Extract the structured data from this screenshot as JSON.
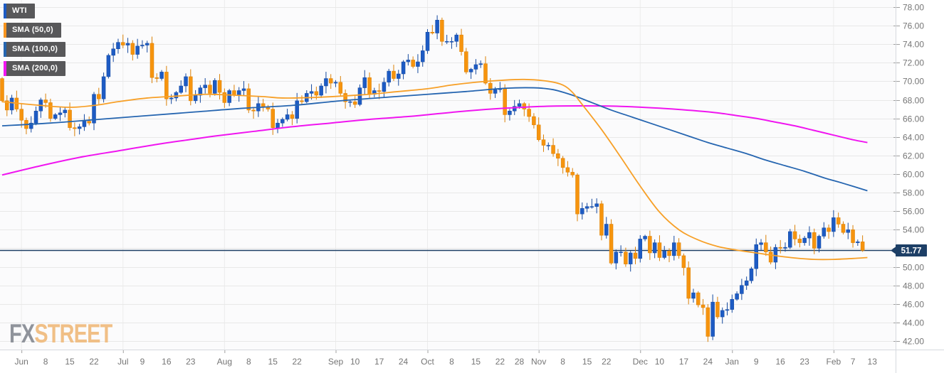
{
  "legend": {
    "items": [
      {
        "label": "WTI",
        "color": "#1d5bc4"
      },
      {
        "label": "SMA (50,0)",
        "color": "#f7941e"
      },
      {
        "label": "SMA (100,0)",
        "color": "#2565b0"
      },
      {
        "label": "SMA (200,0)",
        "color": "#f015f0"
      }
    ]
  },
  "watermark": {
    "fx": "FX",
    "street": "STREET"
  },
  "chart_data": {
    "type": "candlestick",
    "symbol": "WTI",
    "last_price": 51.77,
    "price_label": "51.77",
    "y_axis": {
      "min": 42,
      "max": 78,
      "step": 2,
      "tick_values": [
        78,
        76,
        74,
        72,
        70,
        68,
        66,
        64,
        62,
        60,
        58,
        56,
        54,
        52,
        50,
        48,
        46,
        44,
        42
      ]
    },
    "x_axis": {
      "labels": [
        {
          "t": "Jun",
          "i": 4,
          "m": true
        },
        {
          "t": "8",
          "i": 9
        },
        {
          "t": "15",
          "i": 14
        },
        {
          "t": "22",
          "i": 19
        },
        {
          "t": "Jul",
          "i": 25,
          "m": true
        },
        {
          "t": "9",
          "i": 29
        },
        {
          "t": "16",
          "i": 34
        },
        {
          "t": "23",
          "i": 39
        },
        {
          "t": "Aug",
          "i": 46,
          "m": true
        },
        {
          "t": "8",
          "i": 51
        },
        {
          "t": "15",
          "i": 56
        },
        {
          "t": "22",
          "i": 61
        },
        {
          "t": "Sep",
          "i": 69,
          "m": true
        },
        {
          "t": "10",
          "i": 73
        },
        {
          "t": "17",
          "i": 78
        },
        {
          "t": "24",
          "i": 83
        },
        {
          "t": "Oct",
          "i": 88,
          "m": true
        },
        {
          "t": "8",
          "i": 93
        },
        {
          "t": "15",
          "i": 98
        },
        {
          "t": "22",
          "i": 103
        },
        {
          "t": "28",
          "i": 107
        },
        {
          "t": "Nov",
          "i": 111,
          "m": true
        },
        {
          "t": "8",
          "i": 116
        },
        {
          "t": "15",
          "i": 121
        },
        {
          "t": "22",
          "i": 125
        },
        {
          "t": "Dec",
          "i": 132,
          "m": true
        },
        {
          "t": "10",
          "i": 136
        },
        {
          "t": "17",
          "i": 141
        },
        {
          "t": "24",
          "i": 146
        },
        {
          "t": "Jan",
          "i": 151,
          "m": true
        },
        {
          "t": "9",
          "i": 156
        },
        {
          "t": "16",
          "i": 161
        },
        {
          "t": "23",
          "i": 166
        },
        {
          "t": "Feb",
          "i": 172,
          "m": true
        },
        {
          "t": "7",
          "i": 176
        },
        {
          "t": "13",
          "i": 180
        }
      ]
    },
    "candles": {
      "first_open": 70.3,
      "closes": [
        67.9,
        66.9,
        68.2,
        67.0,
        65.8,
        64.9,
        65.5,
        66.8,
        68.0,
        67.7,
        66.0,
        66.4,
        66.6,
        66.9,
        65.0,
        64.9,
        65.1,
        65.7,
        65.5,
        68.6,
        68.1,
        70.5,
        72.8,
        73.5,
        74.2,
        73.9,
        74.1,
        72.9,
        73.8,
        73.9,
        74.1,
        70.4,
        70.3,
        71.0,
        68.1,
        68.2,
        68.8,
        69.5,
        70.5,
        67.9,
        68.5,
        69.3,
        69.6,
        68.7,
        70.1,
        68.8,
        67.7,
        69.0,
        68.5,
        69.0,
        69.2,
        66.9,
        66.8,
        67.6,
        67.2,
        67.0,
        65.0,
        65.5,
        65.9,
        66.4,
        66.0,
        67.9,
        67.8,
        68.7,
        68.9,
        68.5,
        69.5,
        70.3,
        69.8,
        69.9,
        68.7,
        67.8,
        67.8,
        67.5,
        69.3,
        70.4,
        68.6,
        69.0,
        68.9,
        69.9,
        71.1,
        70.3,
        70.8,
        72.1,
        72.3,
        71.6,
        72.1,
        73.3,
        75.3,
        75.2,
        76.6,
        74.3,
        74.3,
        74.3,
        75.0,
        73.2,
        71.0,
        71.3,
        71.8,
        71.9,
        69.8,
        68.7,
        69.1,
        69.2,
        66.4,
        66.8,
        67.3,
        67.6,
        67.0,
        66.2,
        65.3,
        63.7,
        63.1,
        63.1,
        62.2,
        61.7,
        60.7,
        60.2,
        59.9,
        55.7,
        56.3,
        56.5,
        56.5,
        56.8,
        53.4,
        54.6,
        50.4,
        51.6,
        51.6,
        50.3,
        51.5,
        50.9,
        53.0,
        53.3,
        51.5,
        52.6,
        51.0,
        51.7,
        51.2,
        52.6,
        51.2,
        49.9,
        46.6,
        47.2,
        45.9,
        45.6,
        42.5,
        46.2,
        44.6,
        45.3,
        45.4,
        46.5,
        47.1,
        48.0,
        48.5,
        49.8,
        52.4,
        52.6,
        51.6,
        50.5,
        52.1,
        52.0,
        52.1,
        53.8,
        53.0,
        52.6,
        53.1,
        53.7,
        52.0,
        53.3,
        54.2,
        53.8,
        55.3,
        54.6,
        53.7,
        54.0,
        52.6,
        52.7,
        51.77
      ]
    },
    "sma50": [
      [
        0,
        67.8
      ],
      [
        8,
        67.4
      ],
      [
        14,
        67.2
      ],
      [
        19,
        67.4
      ],
      [
        24,
        67.8
      ],
      [
        30,
        68.2
      ],
      [
        36,
        68.4
      ],
      [
        42,
        68.6
      ],
      [
        48,
        68.5
      ],
      [
        54,
        68.35
      ],
      [
        58,
        68.2
      ],
      [
        64,
        68.25
      ],
      [
        70,
        68.4
      ],
      [
        76,
        68.6
      ],
      [
        82,
        68.9
      ],
      [
        88,
        69.2
      ],
      [
        93,
        69.6
      ],
      [
        98,
        69.9
      ],
      [
        103,
        70.1
      ],
      [
        108,
        70.2
      ],
      [
        113,
        70.0
      ],
      [
        116,
        69.6
      ],
      [
        118,
        68.8
      ],
      [
        120,
        67.5
      ],
      [
        124,
        64.8
      ],
      [
        128,
        61.8
      ],
      [
        132,
        58.7
      ],
      [
        136,
        55.9
      ],
      [
        140,
        54.0
      ],
      [
        144,
        52.9
      ],
      [
        148,
        52.2
      ],
      [
        152,
        51.8
      ],
      [
        156,
        51.5
      ],
      [
        160,
        51.2
      ],
      [
        164,
        50.95
      ],
      [
        168,
        50.8
      ],
      [
        172,
        50.8
      ],
      [
        176,
        50.9
      ],
      [
        179,
        51.0
      ]
    ],
    "sma100": [
      [
        0,
        65.2
      ],
      [
        10,
        65.5
      ],
      [
        20,
        65.9
      ],
      [
        30,
        66.3
      ],
      [
        40,
        66.7
      ],
      [
        50,
        67.1
      ],
      [
        60,
        67.4
      ],
      [
        70,
        67.9
      ],
      [
        80,
        68.3
      ],
      [
        88,
        68.6
      ],
      [
        96,
        68.9
      ],
      [
        104,
        69.25
      ],
      [
        110,
        69.3
      ],
      [
        114,
        69.1
      ],
      [
        118,
        68.5
      ],
      [
        122,
        67.7
      ],
      [
        126,
        66.9
      ],
      [
        130,
        66.2
      ],
      [
        134,
        65.5
      ],
      [
        138,
        64.8
      ],
      [
        142,
        64.1
      ],
      [
        146,
        63.4
      ],
      [
        150,
        62.8
      ],
      [
        154,
        62.2
      ],
      [
        158,
        61.5
      ],
      [
        162,
        60.9
      ],
      [
        166,
        60.3
      ],
      [
        170,
        59.6
      ],
      [
        174,
        59.0
      ],
      [
        179,
        58.2
      ]
    ],
    "sma200": [
      [
        0,
        59.9
      ],
      [
        8,
        60.9
      ],
      [
        16,
        61.8
      ],
      [
        24,
        62.5
      ],
      [
        32,
        63.2
      ],
      [
        40,
        63.8
      ],
      [
        44,
        64.1
      ],
      [
        52,
        64.6
      ],
      [
        60,
        65.1
      ],
      [
        68,
        65.5
      ],
      [
        76,
        65.9
      ],
      [
        84,
        66.2
      ],
      [
        88,
        66.4
      ],
      [
        96,
        66.8
      ],
      [
        104,
        67.1
      ],
      [
        112,
        67.3
      ],
      [
        120,
        67.35
      ],
      [
        128,
        67.3
      ],
      [
        136,
        67.1
      ],
      [
        144,
        66.8
      ],
      [
        148,
        66.6
      ],
      [
        152,
        66.3
      ],
      [
        156,
        66.0
      ],
      [
        160,
        65.6
      ],
      [
        164,
        65.2
      ],
      [
        168,
        64.7
      ],
      [
        172,
        64.2
      ],
      [
        176,
        63.7
      ],
      [
        179,
        63.4
      ]
    ],
    "colors": {
      "candle_up": "#1d5bc4",
      "candle_up_border": "#164a9f",
      "candle_down": "#f6940e",
      "candle_down_border": "#db8108",
      "sma50": "#f7a028",
      "sma100": "#2565b0",
      "sma200": "#f015f0",
      "price_line": "#1d3f66",
      "price_label_bg": "#1d3f66",
      "price_label_text": "#ffffff",
      "grid_h": "#e8e8e8",
      "grid_v": "#ececec",
      "axis_text": "#757575",
      "separator": "#d6d9de",
      "tick": "#a0a0a0",
      "plot_bg": "#fbfbfc",
      "axis_bg": "#ffffff"
    },
    "layout": {
      "grid": true,
      "legend_position": "top-left",
      "y_axis_side": "right"
    }
  }
}
